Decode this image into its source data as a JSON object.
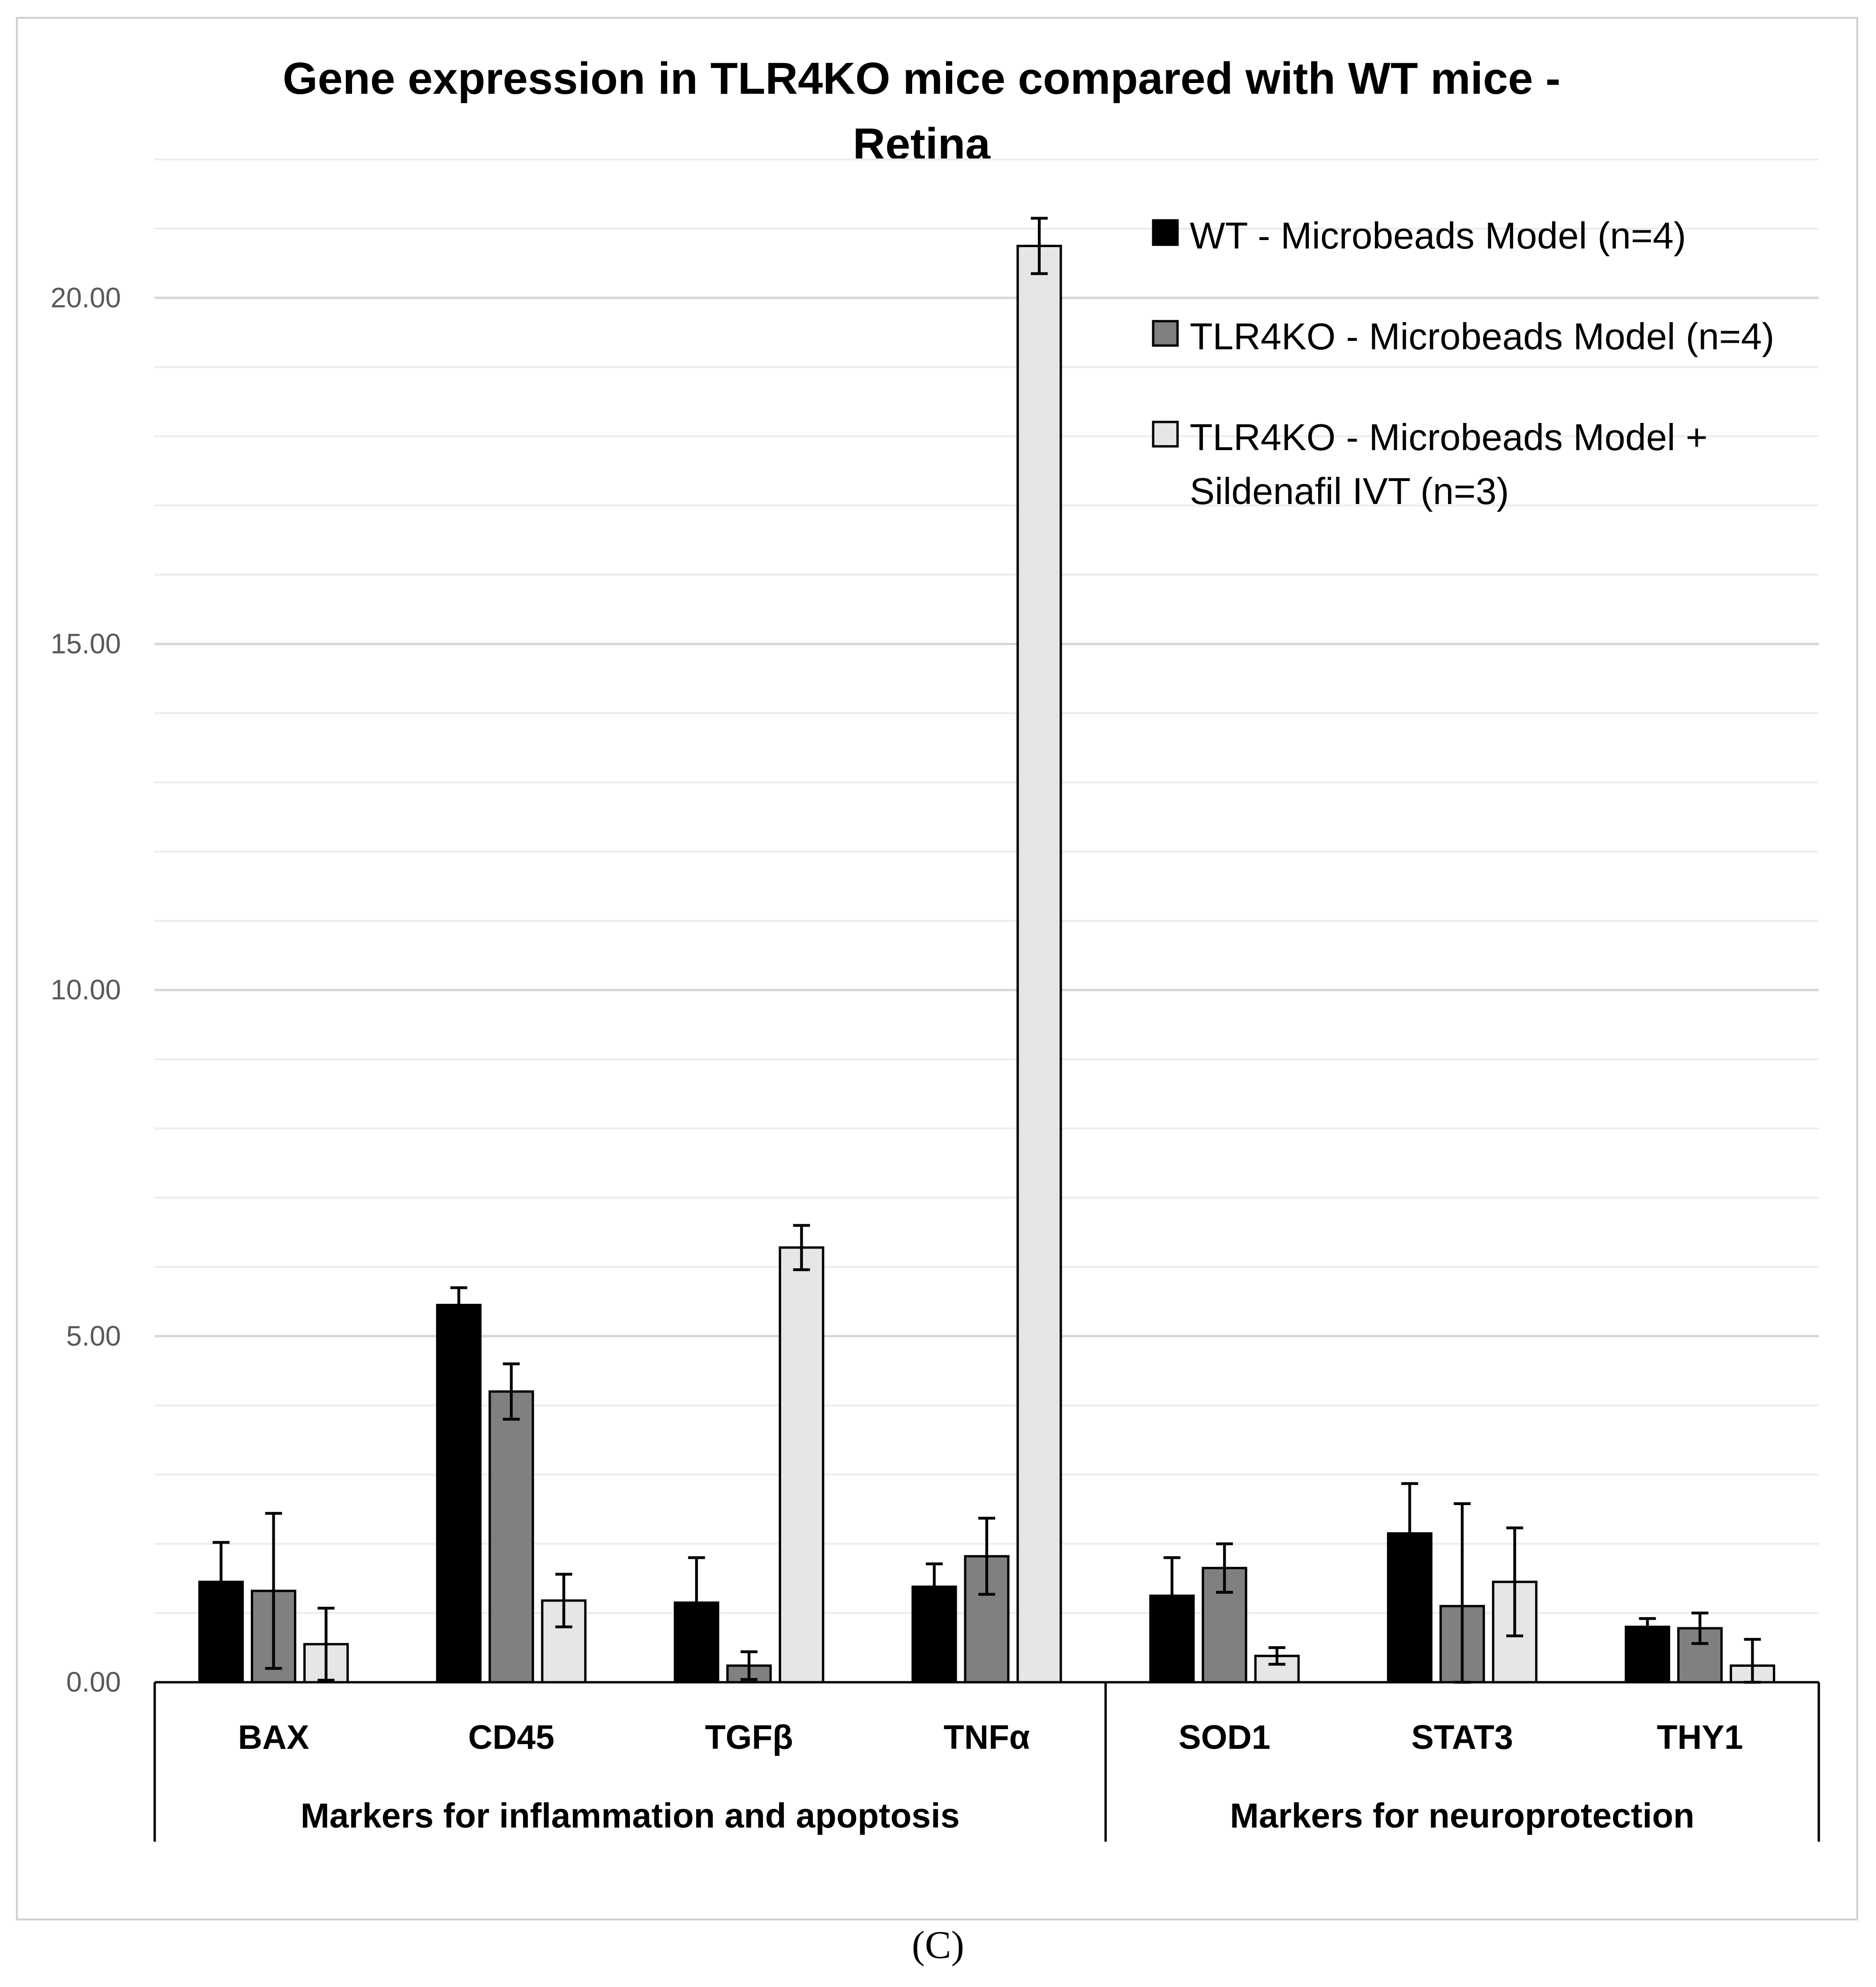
{
  "caption": "(C)",
  "chart_data": {
    "type": "bar",
    "title": "Gene expression in TLR4KO mice compared with WT mice - Retina",
    "title_lines": [
      "Gene expression in TLR4KO mice compared with WT mice -",
      "Retina"
    ],
    "categories": [
      "BAX",
      "CD45",
      "TGFβ",
      "TNFα",
      "SOD1",
      "STAT3",
      "THY1"
    ],
    "groups": [
      {
        "label": "Markers for inflammation and apoptosis",
        "start": 0,
        "end": 3
      },
      {
        "label": "Markers for neuroprotection",
        "start": 4,
        "end": 6
      }
    ],
    "ylim": [
      0,
      22
    ],
    "yticks": [
      0,
      5,
      10,
      15,
      20
    ],
    "ytick_labels": [
      "0.00",
      "5.00",
      "10.00",
      "15.00",
      "20.00"
    ],
    "grid": true,
    "legend_position": "top-right",
    "series": [
      {
        "name": "WT - Microbeads Model (n=4)",
        "color": "#000000",
        "values": [
          1.45,
          5.45,
          1.15,
          1.38,
          1.25,
          2.15,
          0.8
        ],
        "errors": [
          0.57,
          0.25,
          0.65,
          0.33,
          0.55,
          0.72,
          0.12
        ]
      },
      {
        "name": "TLR4KO - Microbeads Model (n=4)",
        "color": "#808080",
        "values": [
          1.32,
          4.2,
          0.24,
          1.82,
          1.65,
          1.1,
          0.78
        ],
        "errors": [
          1.12,
          0.4,
          0.2,
          0.55,
          0.35,
          1.48,
          0.22
        ]
      },
      {
        "name_lines": [
          "TLR4KO - Microbeads Model +",
          "Sildenafil IVT (n=3)"
        ],
        "name": "TLR4KO - Microbeads Model + Sildenafil IVT (n=3)",
        "color": "#e6e6e6",
        "values": [
          0.55,
          1.18,
          6.28,
          20.75,
          0.38,
          1.45,
          0.24
        ],
        "errors": [
          0.52,
          0.38,
          0.32,
          0.4,
          0.12,
          0.78,
          0.38
        ]
      }
    ]
  }
}
